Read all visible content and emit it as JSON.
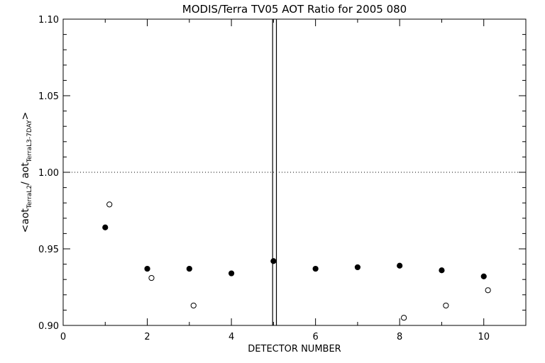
{
  "chart_data": {
    "type": "scatter",
    "title": "MODIS/Terra TV05 AOT Ratio for 2005 080",
    "xlabel": "DETECTOR NUMBER",
    "ylabel": {
      "prefix": "<aot",
      "sub1": "TerraL2",
      "middle": "/ aot",
      "sub2": "TerraL3-7DAY",
      "suffix": ">"
    },
    "xlim": [
      0,
      11
    ],
    "ylim": [
      0.9,
      1.1
    ],
    "x_ticks": [
      "0",
      "2",
      "4",
      "6",
      "8",
      "10"
    ],
    "y_ticks": [
      "0.90",
      "0.95",
      "1.00",
      "1.05",
      "1.10"
    ],
    "reference_line_y": 1.0,
    "vertical_lines_x": [
      4.98,
      5.07
    ],
    "grid": false,
    "legend": "none",
    "series": [
      {
        "marker": "filled-circle",
        "points": [
          {
            "x": 1,
            "y": 0.964
          },
          {
            "x": 2,
            "y": 0.937
          },
          {
            "x": 3,
            "y": 0.937
          },
          {
            "x": 4,
            "y": 0.934
          },
          {
            "x": 5,
            "y": 0.942
          },
          {
            "x": 6,
            "y": 0.937
          },
          {
            "x": 7,
            "y": 0.938
          },
          {
            "x": 8,
            "y": 0.939
          },
          {
            "x": 9,
            "y": 0.936
          },
          {
            "x": 10,
            "y": 0.932
          }
        ]
      },
      {
        "marker": "open-circle",
        "points": [
          {
            "x": 1.1,
            "y": 0.979
          },
          {
            "x": 2.1,
            "y": 0.931
          },
          {
            "x": 3.1,
            "y": 0.913
          },
          {
            "x": 8.1,
            "y": 0.905
          },
          {
            "x": 9.1,
            "y": 0.913
          },
          {
            "x": 10.1,
            "y": 0.923
          }
        ]
      }
    ]
  }
}
